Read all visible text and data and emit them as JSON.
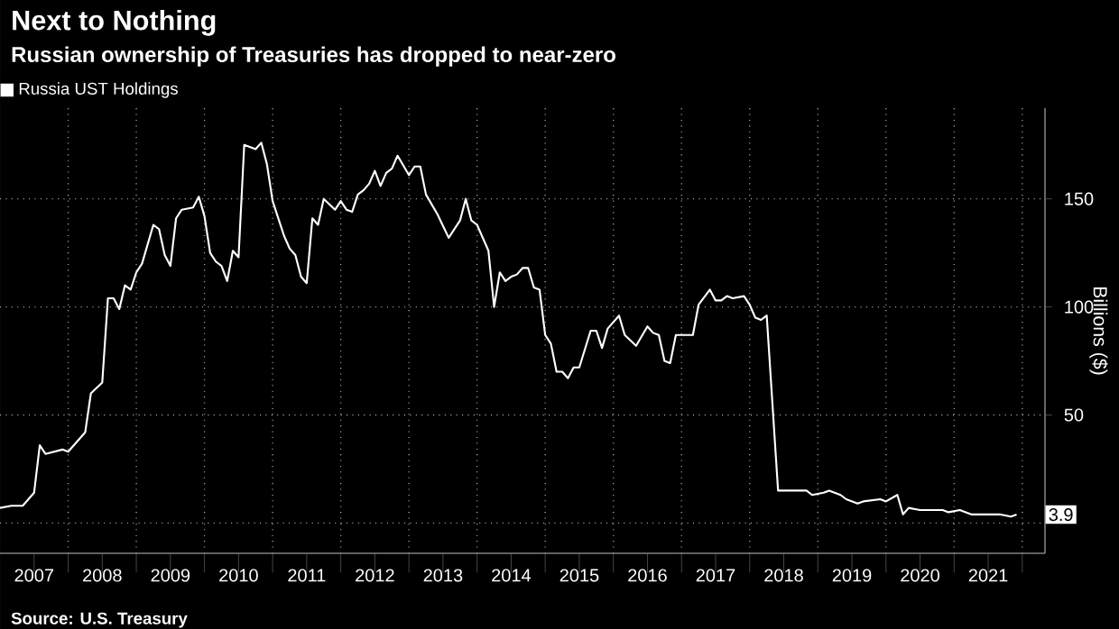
{
  "chart_data": {
    "type": "line",
    "title": "Next to Nothing",
    "subtitle": "Russian ownership of Treasuries has dropped to near-zero",
    "ylabel": "Billions ($)",
    "x": [
      "2007-01",
      "2007-03",
      "2007-05",
      "2007-07",
      "2007-08",
      "2007-09",
      "2007-12",
      "2008-01",
      "2008-04",
      "2008-05",
      "2008-07",
      "2008-08",
      "2008-09",
      "2008-10",
      "2008-11",
      "2008-12",
      "2009-01",
      "2009-02",
      "2009-04",
      "2009-05",
      "2009-06",
      "2009-07",
      "2009-08",
      "2009-09",
      "2009-11",
      "2009-12",
      "2010-01",
      "2010-02",
      "2010-03",
      "2010-04",
      "2010-05",
      "2010-06",
      "2010-07",
      "2010-08",
      "2010-09",
      "2010-10",
      "2010-11",
      "2010-12",
      "2011-01",
      "2011-03",
      "2011-04",
      "2011-05",
      "2011-06",
      "2011-07",
      "2011-08",
      "2011-09",
      "2011-10",
      "2011-12",
      "2012-01",
      "2012-02",
      "2012-03",
      "2012-04",
      "2012-05",
      "2012-06",
      "2012-07",
      "2012-08",
      "2012-09",
      "2012-10",
      "2012-11",
      "2013-01",
      "2013-02",
      "2013-03",
      "2013-04",
      "2013-06",
      "2013-08",
      "2013-10",
      "2013-11",
      "2013-12",
      "2014-01",
      "2014-03",
      "2014-04",
      "2014-05",
      "2014-06",
      "2014-07",
      "2014-08",
      "2014-09",
      "2014-10",
      "2014-11",
      "2014-12",
      "2015-01",
      "2015-02",
      "2015-03",
      "2015-04",
      "2015-05",
      "2015-06",
      "2015-07",
      "2015-09",
      "2015-10",
      "2015-11",
      "2015-12",
      "2016-02",
      "2016-03",
      "2016-05",
      "2016-07",
      "2016-08",
      "2016-09",
      "2016-10",
      "2016-11",
      "2016-12",
      "2017-01",
      "2017-03",
      "2017-04",
      "2017-06",
      "2017-07",
      "2017-08",
      "2017-09",
      "2017-10",
      "2017-12",
      "2018-01",
      "2018-02",
      "2018-03",
      "2018-04",
      "2018-06",
      "2018-08",
      "2018-11",
      "2018-12",
      "2019-02",
      "2019-03",
      "2019-05",
      "2019-06",
      "2019-08",
      "2019-09",
      "2019-12",
      "2020-01",
      "2020-03",
      "2020-04",
      "2020-05",
      "2020-07",
      "2020-11",
      "2020-12",
      "2021-02",
      "2021-04",
      "2021-07",
      "2021-09",
      "2021-11",
      "2021-12"
    ],
    "series": [
      {
        "name": "Russia UST Holdings",
        "color": "#ffffff",
        "values": [
          7,
          8,
          8,
          14,
          36,
          32,
          34,
          33,
          42,
          60,
          65,
          104,
          104,
          99,
          110,
          108,
          116,
          120,
          138,
          136,
          124,
          119,
          141,
          145,
          146,
          151,
          142,
          125,
          121,
          119,
          112,
          126,
          123,
          175,
          174,
          173,
          176,
          166,
          149,
          133,
          127,
          124,
          114,
          111,
          141,
          138,
          150,
          145,
          149,
          145,
          144,
          152,
          154,
          157,
          163,
          156,
          162,
          164,
          170,
          161,
          165,
          165,
          152,
          143,
          132,
          140,
          150,
          140,
          138,
          126,
          100,
          116,
          112,
          114,
          115,
          118,
          118,
          109,
          108,
          87,
          83,
          70,
          70,
          67,
          72,
          72,
          89,
          89,
          81,
          90,
          96,
          87,
          82,
          91,
          88,
          87,
          75,
          74,
          87,
          87,
          87,
          101,
          108,
          103,
          103,
          105,
          104,
          105,
          101,
          95,
          94,
          96,
          15,
          15,
          15,
          13,
          14,
          15,
          13,
          11,
          9,
          10,
          11,
          10,
          13,
          4,
          7,
          6,
          6,
          5,
          6,
          4,
          4,
          4,
          3,
          3.9
        ]
      }
    ],
    "xlim": [
      "2007-01",
      "2022-05"
    ],
    "xticks": [
      {
        "value": "2008-01",
        "label": null
      },
      {
        "value": "2009-01",
        "label": null
      },
      {
        "value": "2010-01",
        "label": null
      },
      {
        "value": "2011-01",
        "label": null
      },
      {
        "value": "2012-01",
        "label": null
      },
      {
        "value": "2013-01",
        "label": null
      },
      {
        "value": "2014-01",
        "label": null
      },
      {
        "value": "2015-01",
        "label": null
      },
      {
        "value": "2016-01",
        "label": null
      },
      {
        "value": "2017-01",
        "label": null
      },
      {
        "value": "2018-01",
        "label": null
      },
      {
        "value": "2019-01",
        "label": null
      },
      {
        "value": "2020-01",
        "label": null
      },
      {
        "value": "2021-01",
        "label": null
      },
      {
        "value": "2022-01",
        "label": null
      },
      {
        "value": "2007-07",
        "label": "2007"
      },
      {
        "value": "2008-07",
        "label": "2008"
      },
      {
        "value": "2009-07",
        "label": "2009"
      },
      {
        "value": "2010-07",
        "label": "2010"
      },
      {
        "value": "2011-07",
        "label": "2011"
      },
      {
        "value": "2012-07",
        "label": "2012"
      },
      {
        "value": "2013-07",
        "label": "2013"
      },
      {
        "value": "2014-07",
        "label": "2014"
      },
      {
        "value": "2015-07",
        "label": "2015"
      },
      {
        "value": "2016-07",
        "label": "2016"
      },
      {
        "value": "2017-07",
        "label": "2017"
      },
      {
        "value": "2018-07",
        "label": "2018"
      },
      {
        "value": "2019-07",
        "label": "2019"
      },
      {
        "value": "2020-07",
        "label": "2020"
      },
      {
        "value": "2021-07",
        "label": "2021"
      }
    ],
    "ylim": [
      -14,
      192
    ],
    "yticks": [
      {
        "value": 0,
        "label": null
      },
      50,
      100,
      150
    ],
    "grid": true,
    "legend": "top left",
    "marker": "none",
    "line_style": "solid",
    "annotations": [
      "Source: U.S. Treasury",
      {
        "text": "3.9",
        "x": "2021-12",
        "y": 3.9
      }
    ]
  }
}
